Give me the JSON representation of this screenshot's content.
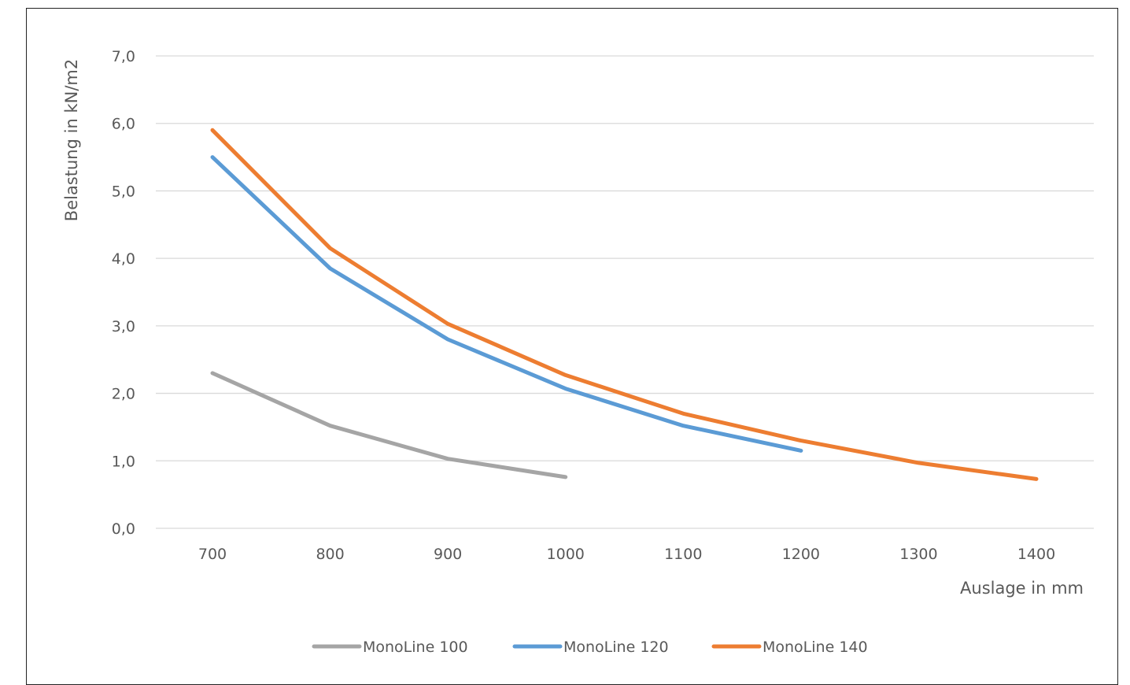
{
  "chart_data": {
    "type": "line",
    "title": "",
    "xlabel": "Auslage in mm",
    "ylabel": "Belastung in kN/m2",
    "x_ticks": [
      "700",
      "800",
      "900",
      "1000",
      "1100",
      "1200",
      "1300",
      "1400"
    ],
    "y_ticks": [
      "0,0",
      "1,0",
      "2,0",
      "3,0",
      "4,0",
      "5,0",
      "6,0",
      "7,0"
    ],
    "ylim": [
      0,
      7
    ],
    "grid": true,
    "legend_position": "bottom",
    "series": [
      {
        "name": "MonoLine 100",
        "color": "#a5a5a5",
        "x": [
          700,
          800,
          900,
          1000
        ],
        "y": [
          2.3,
          1.52,
          1.03,
          0.76
        ]
      },
      {
        "name": "MonoLine 120",
        "color": "#5b9bd5",
        "x": [
          700,
          800,
          900,
          1000,
          1100,
          1200
        ],
        "y": [
          5.5,
          3.85,
          2.8,
          2.07,
          1.52,
          1.15
        ]
      },
      {
        "name": "MonoLine 140",
        "color": "#ed7d31",
        "x": [
          700,
          800,
          900,
          1000,
          1100,
          1200,
          1300,
          1400
        ],
        "y": [
          5.9,
          4.15,
          3.03,
          2.27,
          1.7,
          1.3,
          0.97,
          0.73
        ]
      }
    ]
  }
}
